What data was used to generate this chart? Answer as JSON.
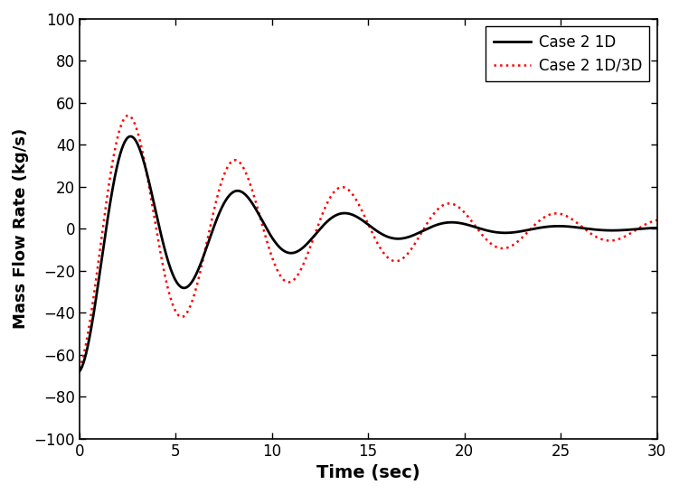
{
  "title": "",
  "xlabel": "Time (sec)",
  "ylabel": "Mass Flow Rate (kg/s)",
  "xlim": [
    0,
    30
  ],
  "ylim": [
    -100,
    100
  ],
  "xticks": [
    0,
    5,
    10,
    15,
    20,
    25,
    30
  ],
  "yticks": [
    -100,
    -80,
    -60,
    -40,
    -20,
    0,
    20,
    40,
    60,
    80,
    100
  ],
  "legend": [
    {
      "label": "Case 2 1D",
      "color": "#000000",
      "linestyle": "solid",
      "linewidth": 2.0
    },
    {
      "label": "Case 2 1D/3D",
      "color": "#ff0000",
      "linestyle": "dotted",
      "linewidth": 1.8
    }
  ],
  "background_color": "#ffffff",
  "case1d": {
    "amplitude": 68.0,
    "decay": 0.16,
    "frequency": 1.13,
    "phase": -1.5708
  },
  "case1d3d": {
    "amplitude": 68.0,
    "decay": 0.09,
    "frequency": 1.13,
    "phase": -1.3708
  }
}
